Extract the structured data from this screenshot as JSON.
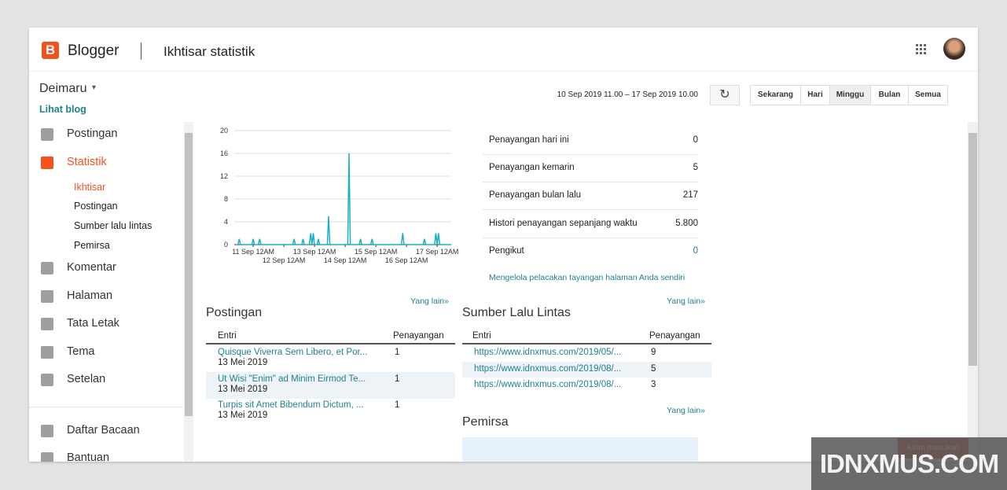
{
  "header": {
    "brand": "Blogger",
    "page_title": "Ikhtisar statistik"
  },
  "sidebar": {
    "blog_name": "Deimaru",
    "view_blog": "Lihat blog",
    "nav": [
      {
        "label": "Postingan"
      },
      {
        "label": "Statistik",
        "items": [
          "Ikhtisar",
          "Postingan",
          "Sumber lalu lintas",
          "Pemirsa"
        ]
      },
      {
        "label": "Komentar"
      },
      {
        "label": "Halaman"
      },
      {
        "label": "Tata Letak"
      },
      {
        "label": "Tema"
      },
      {
        "label": "Setelan"
      }
    ],
    "nav_bottom": [
      {
        "label": "Daftar Bacaan"
      },
      {
        "label": "Bantuan"
      }
    ]
  },
  "toolbar": {
    "date_range": "10 Sep 2019 11.00 – 17 Sep 2019 10.00",
    "tabs": [
      "Sekarang",
      "Hari",
      "Minggu",
      "Bulan",
      "Semua"
    ],
    "active_tab": "Minggu"
  },
  "chart_data": {
    "type": "line",
    "color": "#1ab0c4",
    "grid": true,
    "x": [
      0,
      1,
      2,
      3,
      12,
      13,
      14,
      17,
      18,
      19,
      44,
      45,
      46,
      51,
      52,
      53,
      57,
      58,
      59,
      60,
      61,
      63,
      64,
      65,
      71,
      72,
      73,
      87,
      88,
      89,
      96,
      97,
      98,
      105,
      106,
      107,
      129,
      130,
      131,
      146,
      147,
      148,
      155,
      156,
      157,
      158,
      159,
      168
    ],
    "values": [
      0,
      0,
      1,
      0,
      0,
      1,
      0,
      0,
      1,
      0,
      0,
      1,
      0,
      0,
      1,
      0,
      0,
      2,
      0,
      2,
      0,
      0,
      1,
      0,
      0,
      5,
      0,
      0,
      16,
      0,
      0,
      1,
      0,
      0,
      1,
      0,
      0,
      2,
      0,
      0,
      1,
      0,
      0,
      2,
      0,
      2,
      0,
      0
    ],
    "xlim": [
      0,
      168
    ],
    "xticks": [
      {
        "value": 13,
        "label": "11 Sep 12AM"
      },
      {
        "value": 37,
        "label": "12 Sep 12AM"
      },
      {
        "value": 61,
        "label": "13 Sep 12AM"
      },
      {
        "value": 85,
        "label": "14 Sep 12AM"
      },
      {
        "value": 109,
        "label": "15 Sep 12AM"
      },
      {
        "value": 133,
        "label": "16 Sep 12AM"
      },
      {
        "value": 157,
        "label": "17 Sep 12AM"
      }
    ],
    "ylim": [
      0,
      20
    ],
    "yticks": [
      0,
      4,
      8,
      12,
      16,
      20
    ]
  },
  "stats": {
    "rows": [
      {
        "label": "Penayangan hari ini",
        "value": "0"
      },
      {
        "label": "Penayangan kemarin",
        "value": "5"
      },
      {
        "label": "Penayangan bulan lalu",
        "value": "217"
      },
      {
        "label": "Histori penayangan sepanjang waktu",
        "value": "5.800"
      },
      {
        "label": "Pengikut",
        "value": "0"
      }
    ],
    "manage_link": "Mengelola pelacakan tayangan halaman Anda sendiri"
  },
  "posts": {
    "title": "Postingan",
    "more": "Yang lain»",
    "headers": [
      "Entri",
      "Penayangan"
    ],
    "rows": [
      {
        "title": "Quisque Viverra Sem Libero, et Por...",
        "date": "13 Mei 2019",
        "views": "1"
      },
      {
        "title": "Ut Wisi \"Enim\" ad Minim Eirmod Te...",
        "date": "13 Mei 2019",
        "views": "1"
      },
      {
        "title": "Turpis sit Amet Bibendum Dictum, ...",
        "date": "13 Mei 2019",
        "views": "1"
      }
    ]
  },
  "traffic": {
    "title": "Sumber Lalu Lintas",
    "more": "Yang lain»",
    "headers": [
      "Entri",
      "Penayangan"
    ],
    "rows": [
      {
        "url": "https://www.idnxmus.com/2019/05/...",
        "views": "9"
      },
      {
        "url": "https://www.idnxmus.com/2019/08/...",
        "views": "5"
      },
      {
        "url": "https://www.idnxmus.com/2019/08/...",
        "views": "3"
      }
    ]
  },
  "audience": {
    "title": "Pemirsa",
    "more": "Yang lain»"
  },
  "feedback": "Kirim masukan",
  "watermark": "IDNXMUS.COM"
}
